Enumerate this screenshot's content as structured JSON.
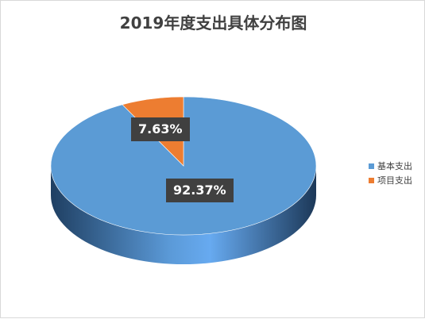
{
  "chart_data": {
    "type": "pie",
    "title": "2019年度支出具体分布图",
    "categories": [
      "基本支出",
      "项目支出"
    ],
    "values": [
      92.37,
      7.63
    ],
    "unit": "%",
    "data_labels": [
      "92.37%",
      "7.63%"
    ],
    "colors": [
      "#5b9bd5",
      "#ed7d31"
    ],
    "legend_position": "right",
    "three_d": true
  }
}
